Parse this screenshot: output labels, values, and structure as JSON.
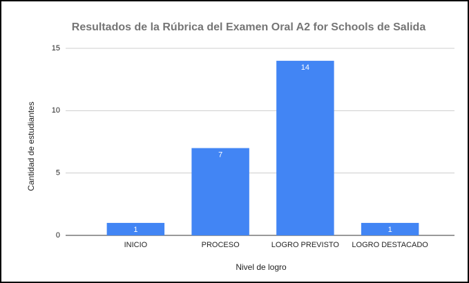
{
  "chart_data": {
    "type": "bar",
    "title": "Resultados de la Rúbrica del Examen Oral A2 for Schools de Salida",
    "x_label": "Nivel de logro",
    "y_label": "Cantidad de estudiantes",
    "categories": [
      "INICIO",
      "PROCESO",
      "LOGRO PREVISTO",
      "LOGRO DESTACADO"
    ],
    "values": [
      1,
      7,
      14,
      1
    ],
    "color": "#4285f4",
    "ylim": [
      0,
      15
    ],
    "yticks": [
      0,
      5,
      10,
      15
    ],
    "grid": true
  }
}
